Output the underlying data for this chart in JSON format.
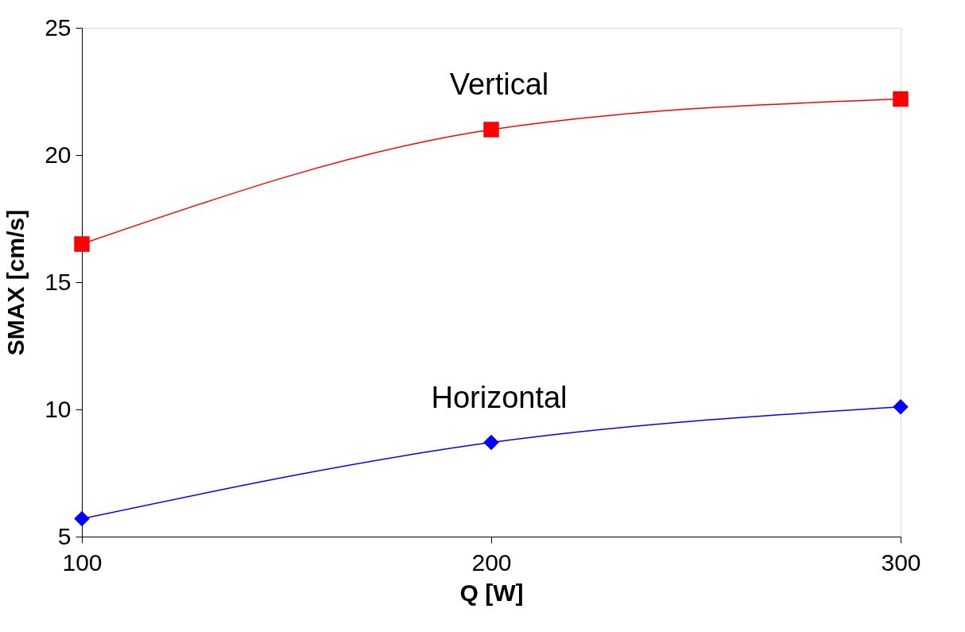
{
  "chart_data": {
    "type": "line",
    "xlabel": "Q [W]",
    "ylabel": "SMAX [cm/s]",
    "x": [
      100,
      200,
      300
    ],
    "series": [
      {
        "name": "Vertical",
        "color": "#ff0000",
        "marker": "square",
        "values": [
          16.5,
          21.0,
          22.2
        ]
      },
      {
        "name": "Horizontal",
        "color": "#0000ff",
        "marker": "diamond",
        "values": [
          5.7,
          8.7,
          10.1
        ]
      }
    ],
    "xlim": [
      100,
      300
    ],
    "xticks": [
      100,
      200,
      300
    ],
    "ylim": [
      5,
      25
    ],
    "yticks": [
      5,
      10,
      15,
      20,
      25
    ],
    "grid": false,
    "line_style": "solid"
  }
}
